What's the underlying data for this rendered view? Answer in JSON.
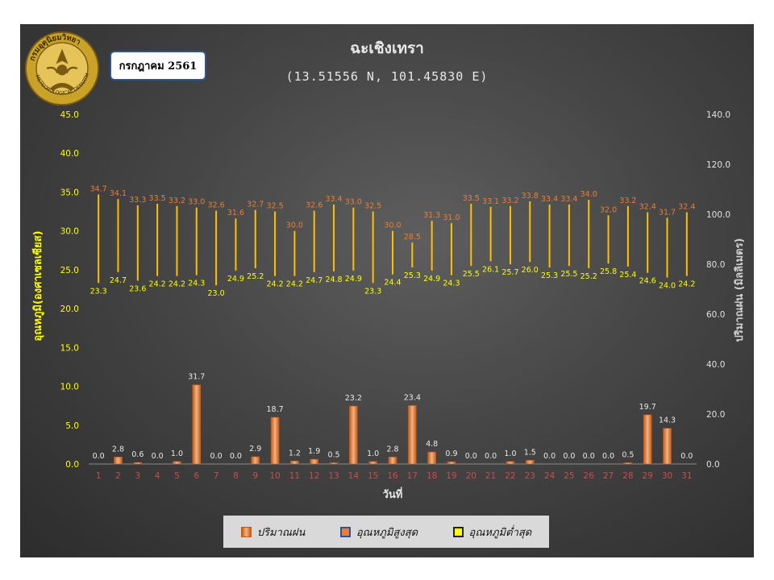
{
  "header": {
    "title": "ฉะเชิงเทรา",
    "subtitle": "(13.51556 N, 101.45830 E)",
    "month": "กรกฎาคม 2561",
    "logo_text": "กรมอุตุนิยมวิทยา METEOROLOGICAL DEPARTMENT"
  },
  "colors": {
    "temp_axis": "#ffff00",
    "rain_bar": "#ed7d31",
    "max_label": "#ed7d31",
    "min_label": "#ffff00",
    "temp_bar": "#ffc000",
    "day_label": "#c0504d"
  },
  "legend": {
    "rain": "ปริมาณฝน",
    "max_temp": "อุณหภูมิสูงสุด",
    "min_temp": "อุณหภูมิต่ำสุด"
  },
  "chart_data": {
    "type": "bar",
    "title": "ฉะเชิงเทรา",
    "subtitle": "(13.51556 N, 101.45830 E)",
    "xlabel": "วันที่",
    "y_left_label": "อุณหภูมิ(องศาเซลเซียส)",
    "y_right_label": "ปริมาณฝน (มิลลิเมตร)",
    "y_left_lim": [
      0,
      45
    ],
    "y_left_ticks": [
      "0.0",
      "5.0",
      "10.0",
      "15.0",
      "20.0",
      "25.0",
      "30.0",
      "35.0",
      "40.0",
      "45.0"
    ],
    "y_right_lim": [
      0,
      140
    ],
    "y_right_ticks": [
      "0.0",
      "20.0",
      "40.0",
      "60.0",
      "80.0",
      "100.0",
      "120.0",
      "140.0"
    ],
    "categories": [
      "1",
      "2",
      "3",
      "4",
      "5",
      "6",
      "7",
      "8",
      "9",
      "10",
      "11",
      "12",
      "13",
      "14",
      "15",
      "16",
      "17",
      "18",
      "19",
      "20",
      "21",
      "22",
      "23",
      "24",
      "25",
      "26",
      "27",
      "28",
      "29",
      "30",
      "31"
    ],
    "legend_position": "bottom",
    "series": [
      {
        "name": "ปริมาณฝน",
        "axis": "right",
        "values": [
          0.0,
          2.8,
          0.6,
          0.0,
          1.0,
          31.7,
          0.0,
          0.0,
          2.9,
          18.7,
          1.2,
          1.9,
          0.5,
          23.2,
          1.0,
          2.8,
          23.4,
          4.8,
          0.9,
          0.0,
          0.0,
          1.0,
          1.5,
          0.0,
          0.0,
          0.0,
          0.0,
          0.5,
          19.7,
          14.3,
          0.0
        ]
      },
      {
        "name": "อุณหภูมิสูงสุด",
        "axis": "left",
        "values": [
          34.7,
          34.1,
          33.3,
          33.5,
          33.2,
          33.0,
          32.6,
          31.6,
          32.7,
          32.5,
          30.0,
          32.6,
          33.4,
          33.0,
          32.5,
          30.0,
          28.5,
          31.3,
          31.0,
          33.5,
          33.1,
          33.2,
          33.8,
          33.4,
          33.4,
          34.0,
          32.0,
          33.2,
          32.4,
          31.7,
          32.4
        ]
      },
      {
        "name": "อุณหภูมิต่ำสุด",
        "axis": "left",
        "values": [
          23.3,
          24.7,
          23.6,
          24.2,
          24.2,
          24.3,
          23.0,
          24.9,
          25.2,
          24.2,
          24.2,
          24.7,
          24.8,
          24.9,
          23.3,
          24.4,
          25.3,
          24.9,
          24.3,
          25.5,
          26.1,
          25.7,
          26.0,
          25.3,
          25.5,
          25.2,
          25.8,
          25.4,
          24.6,
          24.0,
          24.2
        ]
      }
    ]
  }
}
